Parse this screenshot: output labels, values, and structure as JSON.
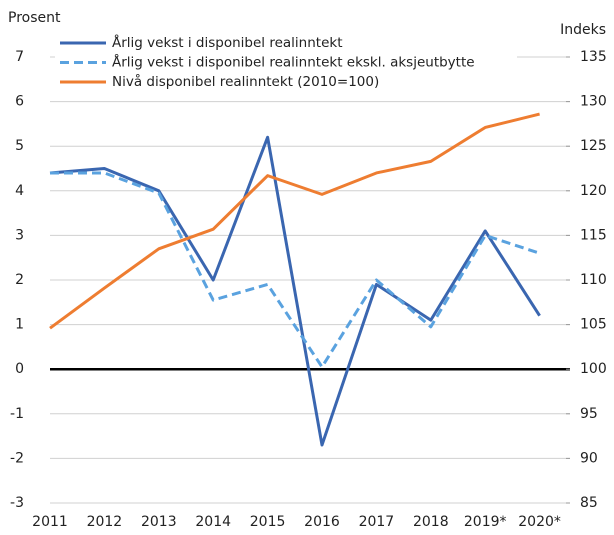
{
  "chart_data": {
    "type": "line",
    "y_label": "Prosent",
    "y2_label": "Indeks",
    "categories": [
      "2011",
      "2012",
      "2013",
      "2014",
      "2015",
      "2016",
      "2017",
      "2018",
      "2019*",
      "2020*"
    ],
    "series": [
      {
        "name": "Årlig vekst i disponibel realinntekt",
        "color": "#3a66b0",
        "dashed": false,
        "values": [
          4.4,
          4.5,
          4.0,
          2.0,
          5.2,
          -1.7,
          1.9,
          1.1,
          3.1,
          1.2
        ]
      },
      {
        "name": "Årlig vekst i disponibel realinntekt ekskl. aksjeutbytte",
        "color": "#5aa2df",
        "dashed": true,
        "values": [
          4.4,
          4.4,
          3.95,
          1.55,
          1.9,
          0.05,
          2.0,
          0.95,
          3.0,
          2.6
        ]
      },
      {
        "name": "Nivå disponibel realinntekt (2010=100)",
        "color": "#ee7d31",
        "dashed": false,
        "axis": "y2",
        "values": [
          104.6,
          109.1,
          113.5,
          115.7,
          121.7,
          119.6,
          122.0,
          123.3,
          127.1,
          128.6
        ]
      }
    ],
    "ylim": [
      -3,
      7
    ],
    "yticks": [
      -3,
      -2,
      -1,
      0,
      1,
      2,
      3,
      4,
      5,
      6,
      7
    ],
    "y2lim": [
      85,
      135
    ],
    "y2ticks": [
      85,
      90,
      95,
      100,
      105,
      110,
      115,
      120,
      125,
      130,
      135
    ],
    "grid": true,
    "legend": "upper left"
  }
}
